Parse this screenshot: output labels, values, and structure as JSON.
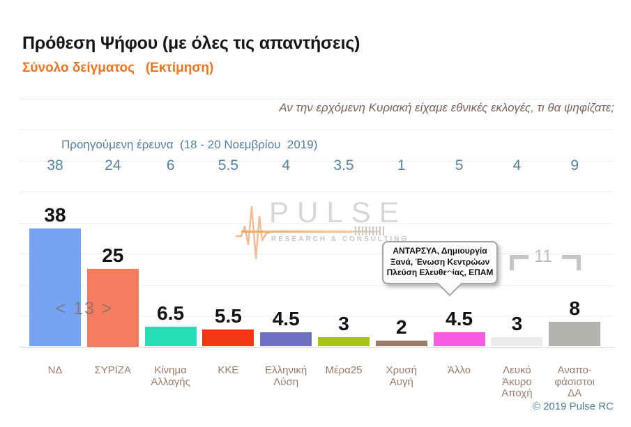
{
  "header": {
    "title": "Πρόθεση Ψήφου (με όλες τις απαντήσεις)",
    "subtitle": "Σύνολο δείγματος   (Εκτίμηση)",
    "question": "Αν την ερχόμενη Κυριακή είχαμε εθνικές εκλογές, τι θα ψηφίζατε;"
  },
  "previous_survey": {
    "label": "Προηγούμενη έρευνα  (18 - 20 Νοεμβρίου  2019)"
  },
  "chart_data": {
    "type": "bar",
    "category_names": [
      "ΝΔ",
      "ΣΥΡΙΖΑ",
      "Κίνημα Αλλαγής",
      "ΚΚΕ",
      "Ελληνική Λύση",
      "Μέρα25",
      "Χρυσή Αυγή",
      "Άλλο",
      "Λευκό Άκυρο Αποχή",
      "Αναποφάσιστοι ΔΑ"
    ],
    "categories": [
      [
        "ΝΔ"
      ],
      [
        "ΣΥΡΙΖΑ"
      ],
      [
        "Κίνημα",
        "Αλλαγής"
      ],
      [
        "ΚΚΕ"
      ],
      [
        "Ελληνική",
        "Λύση"
      ],
      [
        "Μέρα25"
      ],
      [
        "Χρυσή",
        "Αυγή"
      ],
      [
        "Άλλο"
      ],
      [
        "Λευκό",
        "Άκυρο",
        "Αποχή"
      ],
      [
        "Αναπο-",
        "φάσιστοι",
        "ΔΑ"
      ]
    ],
    "series": [
      {
        "name": "Εκτίμηση",
        "values": [
          38,
          25,
          6.5,
          5.5,
          4.5,
          3,
          2,
          4.5,
          3,
          8
        ]
      },
      {
        "name": "Προηγούμενη έρευνα (18 - 20 Νοεμβρίου 2019)",
        "values": [
          38,
          24,
          6,
          5.5,
          4,
          3.5,
          1,
          5,
          4,
          9
        ]
      }
    ],
    "value_labels": [
      "38",
      "25",
      "6.5",
      "5.5",
      "4.5",
      "3",
      "2",
      "4.5",
      "3",
      "8"
    ],
    "previous_labels": [
      "38",
      "24",
      "6",
      "5.5",
      "4",
      "3.5",
      "1",
      "5",
      "4",
      "9"
    ],
    "bar_colors": [
      "#76A4F2",
      "#F47D5F",
      "#25E0B7",
      "#EE3911",
      "#6B70C0",
      "#A7C513",
      "#9B7B69",
      "#F95CE2",
      "#ECECEA",
      "#B4B2AF"
    ],
    "ylabel": "",
    "xlabel": "",
    "ylim": [
      0,
      80
    ],
    "grid": true,
    "legend_position": "none"
  },
  "annotations": {
    "lead_gap": "< 13 >",
    "bracket_sum": "11",
    "tooltip_lines": [
      "ΑΝΤΑΡΣΥΑ,  Δημιουργία",
      "Ξανά,  Ένωση Κεντρώων",
      "Πλεύση Ελευθερίας, ΕΠΑΜ"
    ]
  },
  "watermark": {
    "name": "PULSE",
    "tagline": "RESEARCH & CONSULTING"
  },
  "footer": {
    "copyright": "© 2019 Pulse RC"
  },
  "colors": {
    "subtitle_orange": "#ED7422",
    "steel_blue_text": "#56809b",
    "axis_label_brown": "#9b7c6b",
    "question_brown": "#7a655c",
    "gridline": "#f0efee",
    "annotation_gray": "#bdbcba"
  }
}
